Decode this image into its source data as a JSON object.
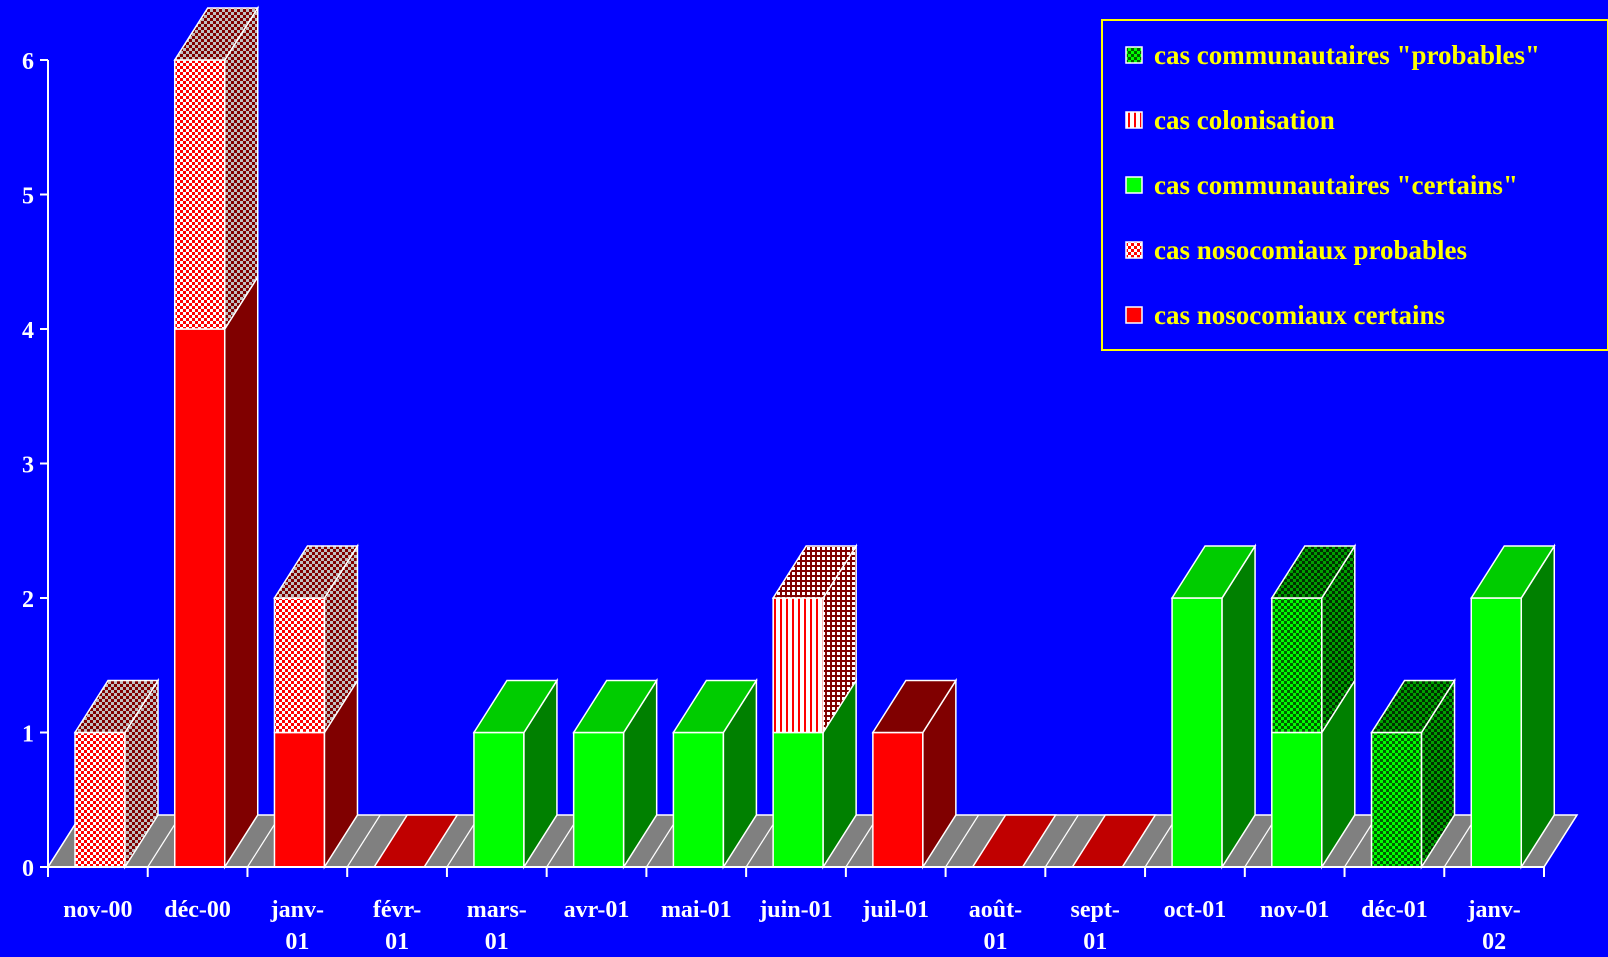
{
  "colors": {
    "background": "#0000ff",
    "legend_text": "#ffff00",
    "axis_text": "#ffffff",
    "floor": "#808080",
    "red": "#ff0000",
    "red_dark": "#800000",
    "red_zero": "#c00000",
    "green": "#00ff00",
    "green_top": "#00cc00",
    "green_dark": "#008000"
  },
  "chart_data": {
    "type": "bar",
    "stacked": true,
    "three_d": true,
    "categories": [
      [
        "nov-00"
      ],
      [
        "déc-00"
      ],
      [
        "janv-",
        "01"
      ],
      [
        "févr-",
        "01"
      ],
      [
        "mars-",
        "01"
      ],
      [
        "avr-01"
      ],
      [
        "mai-01"
      ],
      [
        "juin-01"
      ],
      [
        "juil-01"
      ],
      [
        "août-",
        "01"
      ],
      [
        "sept-",
        "01"
      ],
      [
        "oct-01"
      ],
      [
        "nov-01"
      ],
      [
        "déc-01"
      ],
      [
        "janv-",
        "02"
      ]
    ],
    "series": [
      {
        "name": "cas nosocomiaux certains",
        "key": "noso_cert",
        "values": [
          0,
          4,
          1,
          0,
          0,
          0,
          0,
          0,
          1,
          0,
          0,
          0,
          0,
          0,
          0
        ]
      },
      {
        "name": "cas nosocomiaux probables",
        "key": "noso_prob",
        "values": [
          1,
          2,
          1,
          0,
          0,
          0,
          0,
          0,
          0,
          0,
          0,
          0,
          0,
          0,
          0
        ]
      },
      {
        "name": "cas communautaires \"certains\"",
        "key": "comm_cert",
        "values": [
          0,
          0,
          0,
          0,
          1,
          1,
          1,
          1,
          0,
          0,
          0,
          2,
          1,
          0,
          2
        ]
      },
      {
        "name": "cas colonisation",
        "key": "colon",
        "values": [
          0,
          0,
          0,
          0,
          0,
          0,
          0,
          1,
          0,
          0,
          0,
          0,
          0,
          0,
          0
        ]
      },
      {
        "name": "cas communautaires \"probables\"",
        "key": "comm_prob",
        "values": [
          0,
          0,
          0,
          0,
          0,
          0,
          0,
          0,
          0,
          0,
          0,
          0,
          1,
          1,
          0
        ]
      }
    ],
    "legend_order": [
      "comm_prob",
      "colon",
      "comm_cert",
      "noso_prob",
      "noso_cert"
    ],
    "zero_markers": [
      3,
      9,
      10
    ],
    "yticks": [
      "0",
      "1",
      "2",
      "3",
      "4",
      "5",
      "6"
    ],
    "ylim": [
      0,
      6
    ],
    "legend_position": "top-right"
  }
}
